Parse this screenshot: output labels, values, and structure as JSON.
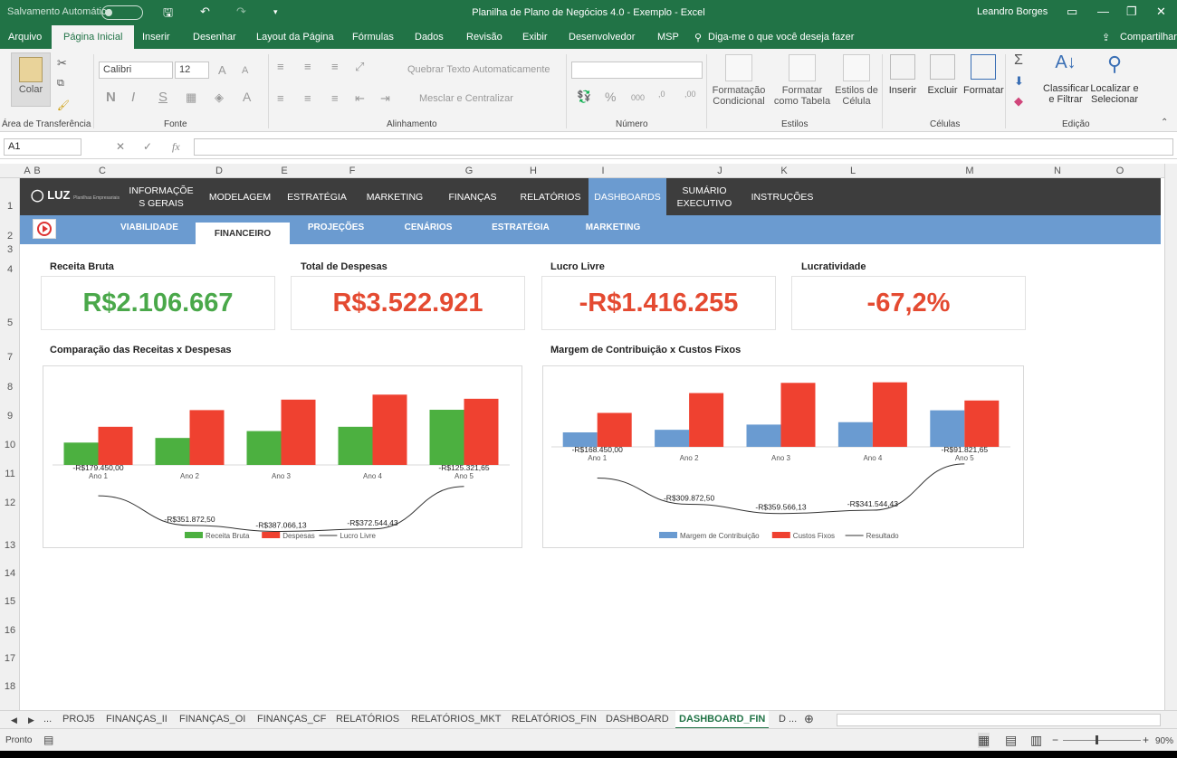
{
  "window": {
    "title": "Planilha de Plano de Negócios 4.0 - Exemplo  -  Excel",
    "user": "Leandro Borges",
    "autosave": "Salvamento Automático"
  },
  "ribbon_tabs": [
    "Arquivo",
    "Página Inicial",
    "Inserir",
    "Desenhar",
    "Layout da Página",
    "Fórmulas",
    "Dados",
    "Revisão",
    "Exibir",
    "Desenvolvedor",
    "MSP"
  ],
  "tell_me": "Diga-me o que você deseja fazer",
  "share": "Compartilhar",
  "ribbon": {
    "paste": "Colar",
    "font_name": "Calibri",
    "font_size": "12",
    "wrap": "Quebrar Texto Automaticamente",
    "merge": "Mesclar e Centralizar",
    "cond_format": "Formatação Condicional",
    "format_table": "Formatar como Tabela",
    "cell_styles": "Estilos de Célula",
    "insert": "Inserir",
    "delete": "Excluir",
    "format": "Formatar",
    "sort": "Classificar e Filtrar",
    "find": "Localizar e Selecionar",
    "groups": [
      "Área de Transferência",
      "Fonte",
      "Alinhamento",
      "Número",
      "Estilos",
      "Células",
      "Edição"
    ]
  },
  "name_box": "A1",
  "columns": [
    "A",
    "B",
    "C",
    "D",
    "E",
    "F",
    "G",
    "H",
    "I",
    "J",
    "K",
    "L",
    "M",
    "N",
    "O"
  ],
  "rows": [
    "1",
    "2",
    "3",
    "4",
    "5",
    "7",
    "8",
    "9",
    "10",
    "11",
    "12",
    "13",
    "14",
    "15",
    "16",
    "17",
    "18"
  ],
  "nav": {
    "logo": "LUZ",
    "logo_sub": "Planilhas Empresariais",
    "items": [
      "INFORMAÇÕE S GERAIS",
      "MODELAGEM",
      "ESTRATÉGIA",
      "MARKETING",
      "FINANÇAS",
      "RELATÓRIOS",
      "DASHBOARDS",
      "SUMÁRIO EXECUTIVO",
      "INSTRUÇÕES"
    ],
    "active": "DASHBOARDS"
  },
  "subnav": {
    "items": [
      "VIABILIDADE",
      "FINANCEIRO",
      "PROJEÇÕES",
      "CENÁRIOS",
      "ESTRATÉGIA",
      "MARKETING"
    ],
    "active": "FINANCEIRO"
  },
  "kpis": [
    {
      "label": "Receita Bruta",
      "value": "R$2.106.667",
      "color": "#4aa84a"
    },
    {
      "label": "Total de Despesas",
      "value": "R$3.522.921",
      "color": "#e44a31"
    },
    {
      "label": "Lucro Livre",
      "value": "-R$1.416.255",
      "color": "#e44a31"
    },
    {
      "label": "Lucratividade",
      "value": "-67,2%",
      "color": "#e44a31"
    }
  ],
  "chart_data": [
    {
      "type": "bar",
      "title": "Comparação das Receitas x Despesas",
      "categories": [
        "Ano 1",
        "Ano 2",
        "Ano 3",
        "Ano 4",
        "Ano 5"
      ],
      "series": [
        {
          "name": "Receita Bruta",
          "color": "#4cb040",
          "values": [
            130000,
            157000,
            197000,
            222000,
            321000
          ]
        },
        {
          "name": "Despesas",
          "color": "#ef4130",
          "values": [
            222000,
            319000,
            380000,
            409000,
            385000
          ]
        },
        {
          "name": "Lucro Livre",
          "type": "line",
          "color": "#333333",
          "values": [
            -179450,
            -351872.5,
            -387066.13,
            -372544.43,
            -125321.65
          ]
        }
      ],
      "data_labels": [
        "-R$179.450,00",
        "-R$351.872,50",
        "-R$387.066,13",
        "-R$372.544,43",
        "-R$125.321,65"
      ]
    },
    {
      "type": "bar",
      "title": "Margem de Contribuição x Custos Fixos",
      "categories": [
        "Ano 1",
        "Ano 2",
        "Ano 3",
        "Ano 4",
        "Ano 5"
      ],
      "series": [
        {
          "name": "Margem de Contribuição",
          "color": "#6a9bd1",
          "values": [
            78000,
            92000,
            120000,
            133000,
            197000
          ]
        },
        {
          "name": "Custos Fixos",
          "color": "#ef4130",
          "values": [
            183000,
            290000,
            345000,
            348000,
            250000
          ]
        },
        {
          "name": "Resultado",
          "type": "line",
          "color": "#333333",
          "values": [
            -168450,
            -309872.5,
            -359566.13,
            -341544.43,
            -91821.65
          ]
        }
      ],
      "data_labels": [
        "-R$168.450,00",
        "-R$309.872,50",
        "-R$359.566,13",
        "-R$341.544,43",
        "-R$91.821,65"
      ]
    }
  ],
  "sheet_tabs": [
    "...",
    "PROJ5",
    "FINANÇAS_II",
    "FINANÇAS_OI",
    "FINANÇAS_CF",
    "RELATÓRIOS",
    "RELATÓRIOS_MKT",
    "RELATÓRIOS_FIN",
    "DASHBOARD",
    "DASHBOARD_FIN",
    "D ..."
  ],
  "active_sheet": "DASHBOARD_FIN",
  "status": {
    "ready": "Pronto",
    "zoom": "90%"
  }
}
